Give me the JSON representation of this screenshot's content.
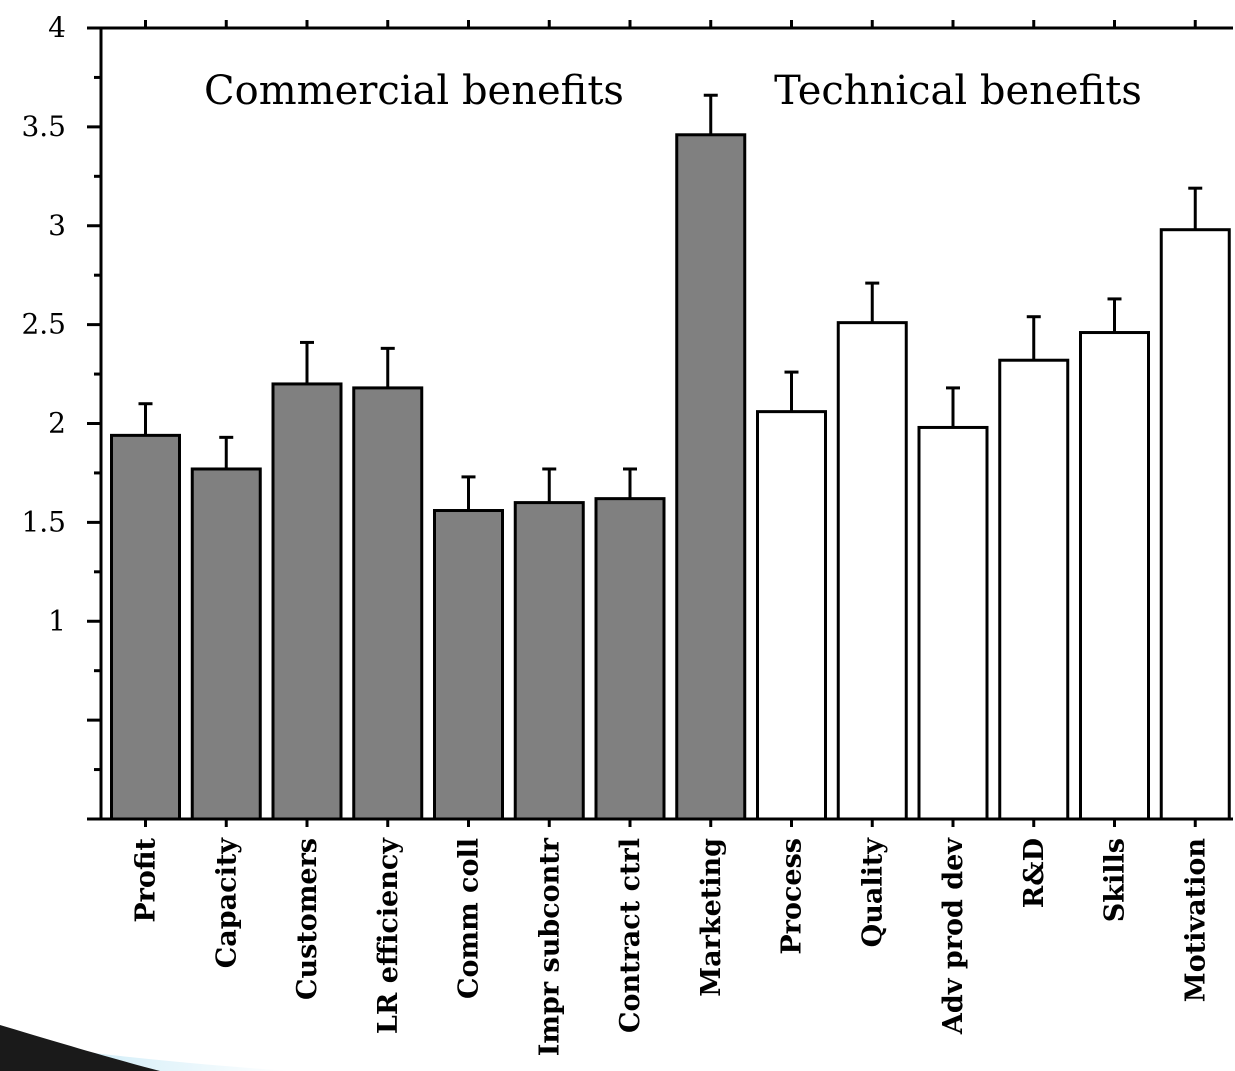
{
  "chart_data": {
    "type": "bar",
    "title": "",
    "xlabel": "",
    "ylabel": "",
    "ylim": [
      0,
      4
    ],
    "yticks": [
      {
        "value": 1,
        "label": "1"
      },
      {
        "value": 1.5,
        "label": "1.5"
      },
      {
        "value": 2,
        "label": "2"
      },
      {
        "value": 2.5,
        "label": "2.5"
      },
      {
        "value": 3,
        "label": "3"
      },
      {
        "value": 3.5,
        "label": "3.5"
      },
      {
        "value": 4,
        "label": "4"
      }
    ],
    "categories": [
      "Profit",
      "Capacity",
      "Customers",
      "LR efficiency",
      "Comm coll",
      "Impr subcontr",
      "Contract ctrl",
      "Marketing",
      "Process",
      "Quality",
      "Adv prod dev",
      "R&D",
      "Skills",
      "Motivation"
    ],
    "values": [
      1.94,
      1.77,
      2.2,
      2.18,
      1.56,
      1.6,
      1.62,
      3.46,
      2.06,
      2.51,
      1.98,
      2.32,
      2.46,
      2.98
    ],
    "errors": [
      0.16,
      0.16,
      0.21,
      0.2,
      0.17,
      0.17,
      0.15,
      0.2,
      0.2,
      0.2,
      0.2,
      0.22,
      0.17,
      0.21
    ],
    "groups": [
      {
        "label": "Commercial benefits",
        "start": 0,
        "end": 7,
        "color": "#808080"
      },
      {
        "label": "Technical benefits",
        "start": 8,
        "end": 13,
        "color": "#ffffff"
      }
    ],
    "grid": false,
    "legend": "none"
  }
}
